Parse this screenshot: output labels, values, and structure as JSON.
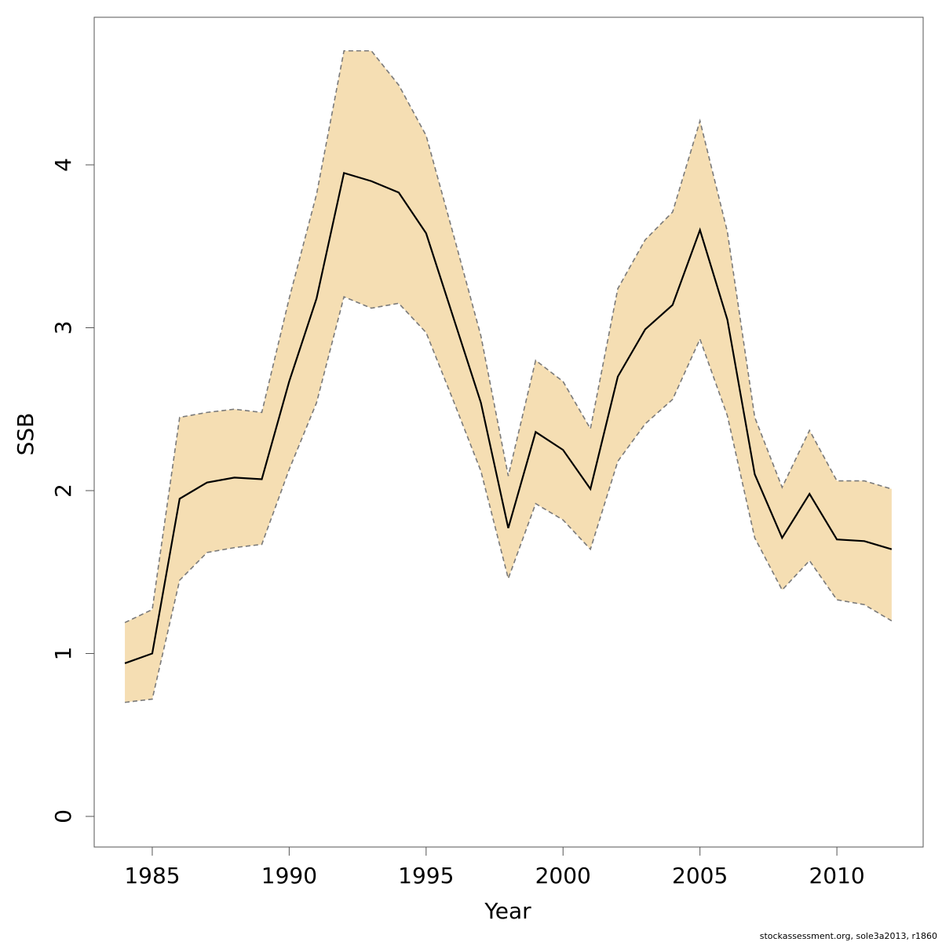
{
  "chart_data": {
    "type": "line",
    "xlabel": "Year",
    "ylabel": "SSB",
    "note": "stockassessment.org, sole3a2013, r1860",
    "x": [
      1984,
      1985,
      1986,
      1987,
      1988,
      1989,
      1990,
      1991,
      1992,
      1993,
      1994,
      1995,
      1996,
      1997,
      1998,
      1999,
      2000,
      2001,
      2002,
      2003,
      2004,
      2005,
      2006,
      2007,
      2008,
      2009,
      2010,
      2011,
      2012
    ],
    "values": [
      0.94,
      1.0,
      1.95,
      2.05,
      2.08,
      2.07,
      2.67,
      3.18,
      3.95,
      3.9,
      3.83,
      3.58,
      3.06,
      2.54,
      1.77,
      2.36,
      2.25,
      2.01,
      2.7,
      2.99,
      3.14,
      3.6,
      3.05,
      2.1,
      1.71,
      1.98,
      1.7,
      1.69,
      1.64
    ],
    "color": "#000000",
    "band": {
      "color": "#f5deb3",
      "line_color": "#7a7a7a",
      "upper": [
        1.19,
        1.27,
        2.45,
        2.48,
        2.5,
        2.48,
        3.18,
        3.82,
        4.7,
        4.7,
        4.49,
        4.18,
        3.57,
        2.95,
        2.09,
        2.8,
        2.67,
        2.38,
        3.24,
        3.54,
        3.71,
        4.27,
        3.59,
        2.45,
        2.02,
        2.37,
        2.06,
        2.06,
        2.01
      ],
      "lower": [
        0.7,
        0.72,
        1.45,
        1.62,
        1.65,
        1.67,
        2.13,
        2.54,
        3.19,
        3.12,
        3.15,
        2.97,
        2.55,
        2.12,
        1.46,
        1.92,
        1.82,
        1.64,
        2.18,
        2.41,
        2.56,
        2.93,
        2.46,
        1.71,
        1.39,
        1.57,
        1.33,
        1.3,
        1.2
      ]
    },
    "xlim": [
      1982.88,
      2013.15
    ],
    "ylim": [
      -0.188,
      4.906
    ],
    "xticks": [
      1985,
      1990,
      1995,
      2000,
      2005,
      2010
    ],
    "yticks": [
      0,
      1,
      2,
      3,
      4
    ]
  }
}
